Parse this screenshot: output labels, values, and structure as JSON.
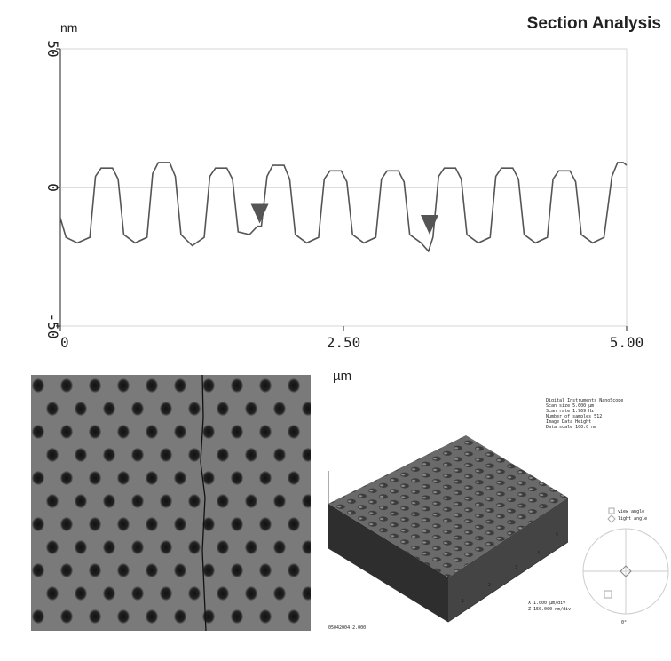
{
  "chart_data": {
    "type": "line",
    "title": "Section Analysis",
    "y_label": "nm",
    "x_label": "µm",
    "xlim": [
      0,
      5
    ],
    "ylim": [
      -50,
      50
    ],
    "xticks": [
      0,
      {
        "value": 2.5,
        "label": "2.50"
      },
      {
        "value": 5,
        "label": "5.00"
      }
    ],
    "yticks": [
      50,
      0,
      -50
    ],
    "zero_line": true,
    "series": [
      {
        "color": "#555555",
        "x": [
          0,
          0.05,
          0.15,
          0.26,
          0.31,
          0.36,
          0.46,
          0.51,
          0.56,
          0.66,
          0.765,
          0.815,
          0.865,
          0.965,
          1.015,
          1.065,
          1.165,
          1.27,
          1.32,
          1.37,
          1.47,
          1.52,
          1.57,
          1.67,
          1.74,
          1.775,
          1.825,
          1.875,
          1.975,
          2.025,
          2.075,
          2.175,
          2.28,
          2.33,
          2.38,
          2.48,
          2.53,
          2.58,
          2.68,
          2.785,
          2.835,
          2.885,
          2.985,
          3.035,
          3.085,
          3.185,
          3.25,
          3.29,
          3.34,
          3.39,
          3.49,
          3.54,
          3.59,
          3.69,
          3.795,
          3.845,
          3.895,
          3.995,
          4.045,
          4.095,
          4.195,
          4.3,
          4.35,
          4.4,
          4.5,
          4.55,
          4.6,
          4.7,
          4.8,
          4.87,
          4.92,
          4.97,
          5
        ],
        "values": [
          -11,
          -18,
          -20,
          -18,
          4,
          7,
          7,
          3,
          -17,
          -20,
          -18,
          5,
          9,
          9,
          4,
          -17,
          -21,
          -18,
          4,
          7,
          7,
          3,
          -16,
          -17,
          -14,
          -14,
          4,
          8,
          8,
          3,
          -17,
          -20,
          -18,
          3,
          6,
          6,
          2,
          -17,
          -20,
          -18,
          3,
          6,
          6,
          2,
          -17,
          -20,
          -23,
          -18,
          4,
          7,
          7,
          3,
          -17,
          -20,
          -18,
          4,
          7,
          7,
          3,
          -17,
          -20,
          -18,
          3,
          6,
          6,
          2,
          -17,
          -20,
          -18,
          4,
          9,
          9,
          8
        ]
      }
    ],
    "markers": {
      "color": "#555555",
      "x": [
        1.76,
        3.26
      ],
      "values": [
        -13,
        -17
      ]
    }
  },
  "panel_3d": {
    "info_lines": [
      "Digital Instruments NanoScope",
      "Scan size 5.000 µm",
      "Scan rate 1.969 Hz",
      "Number of samples 512",
      "Image Data Height",
      "Data scale 100.0 nm"
    ],
    "axis_labels": [
      "1",
      "2",
      "3",
      "4",
      "5"
    ],
    "angles": [
      "view angle",
      "light angle"
    ],
    "angle_mark": "0°",
    "scale_lines": [
      "X 1.000 µm/div",
      "Z 150.000 nm/div"
    ],
    "filename": "05042004-2.000"
  }
}
